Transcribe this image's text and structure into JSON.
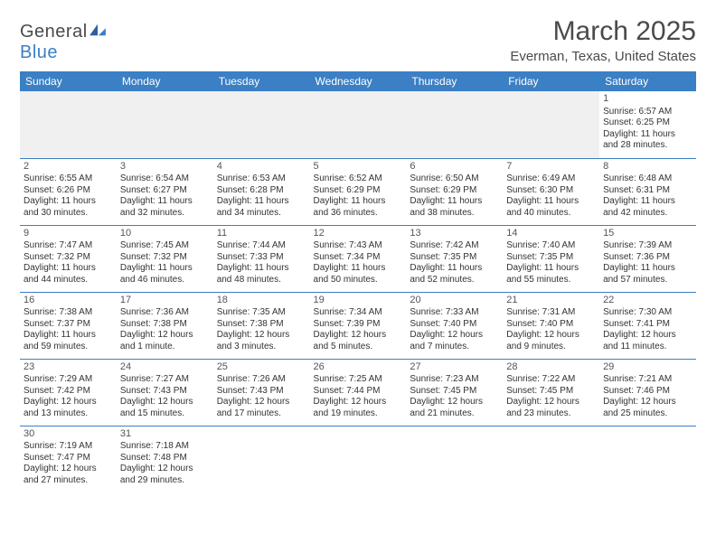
{
  "logo": {
    "textA": "General",
    "textB": "Blue"
  },
  "title": "March 2025",
  "location": "Everman, Texas, United States",
  "colors": {
    "accent": "#3b7fc4",
    "text": "#4a4a4a",
    "grid": "#3b7fc4",
    "empty_bg": "#f0f0f0"
  },
  "weekdays": [
    "Sunday",
    "Monday",
    "Tuesday",
    "Wednesday",
    "Thursday",
    "Friday",
    "Saturday"
  ],
  "weeks": [
    [
      null,
      null,
      null,
      null,
      null,
      null,
      {
        "n": "1",
        "sr": "Sunrise: 6:57 AM",
        "ss": "Sunset: 6:25 PM",
        "d1": "Daylight: 11 hours",
        "d2": "and 28 minutes."
      }
    ],
    [
      {
        "n": "2",
        "sr": "Sunrise: 6:55 AM",
        "ss": "Sunset: 6:26 PM",
        "d1": "Daylight: 11 hours",
        "d2": "and 30 minutes."
      },
      {
        "n": "3",
        "sr": "Sunrise: 6:54 AM",
        "ss": "Sunset: 6:27 PM",
        "d1": "Daylight: 11 hours",
        "d2": "and 32 minutes."
      },
      {
        "n": "4",
        "sr": "Sunrise: 6:53 AM",
        "ss": "Sunset: 6:28 PM",
        "d1": "Daylight: 11 hours",
        "d2": "and 34 minutes."
      },
      {
        "n": "5",
        "sr": "Sunrise: 6:52 AM",
        "ss": "Sunset: 6:29 PM",
        "d1": "Daylight: 11 hours",
        "d2": "and 36 minutes."
      },
      {
        "n": "6",
        "sr": "Sunrise: 6:50 AM",
        "ss": "Sunset: 6:29 PM",
        "d1": "Daylight: 11 hours",
        "d2": "and 38 minutes."
      },
      {
        "n": "7",
        "sr": "Sunrise: 6:49 AM",
        "ss": "Sunset: 6:30 PM",
        "d1": "Daylight: 11 hours",
        "d2": "and 40 minutes."
      },
      {
        "n": "8",
        "sr": "Sunrise: 6:48 AM",
        "ss": "Sunset: 6:31 PM",
        "d1": "Daylight: 11 hours",
        "d2": "and 42 minutes."
      }
    ],
    [
      {
        "n": "9",
        "sr": "Sunrise: 7:47 AM",
        "ss": "Sunset: 7:32 PM",
        "d1": "Daylight: 11 hours",
        "d2": "and 44 minutes."
      },
      {
        "n": "10",
        "sr": "Sunrise: 7:45 AM",
        "ss": "Sunset: 7:32 PM",
        "d1": "Daylight: 11 hours",
        "d2": "and 46 minutes."
      },
      {
        "n": "11",
        "sr": "Sunrise: 7:44 AM",
        "ss": "Sunset: 7:33 PM",
        "d1": "Daylight: 11 hours",
        "d2": "and 48 minutes."
      },
      {
        "n": "12",
        "sr": "Sunrise: 7:43 AM",
        "ss": "Sunset: 7:34 PM",
        "d1": "Daylight: 11 hours",
        "d2": "and 50 minutes."
      },
      {
        "n": "13",
        "sr": "Sunrise: 7:42 AM",
        "ss": "Sunset: 7:35 PM",
        "d1": "Daylight: 11 hours",
        "d2": "and 52 minutes."
      },
      {
        "n": "14",
        "sr": "Sunrise: 7:40 AM",
        "ss": "Sunset: 7:35 PM",
        "d1": "Daylight: 11 hours",
        "d2": "and 55 minutes."
      },
      {
        "n": "15",
        "sr": "Sunrise: 7:39 AM",
        "ss": "Sunset: 7:36 PM",
        "d1": "Daylight: 11 hours",
        "d2": "and 57 minutes."
      }
    ],
    [
      {
        "n": "16",
        "sr": "Sunrise: 7:38 AM",
        "ss": "Sunset: 7:37 PM",
        "d1": "Daylight: 11 hours",
        "d2": "and 59 minutes."
      },
      {
        "n": "17",
        "sr": "Sunrise: 7:36 AM",
        "ss": "Sunset: 7:38 PM",
        "d1": "Daylight: 12 hours",
        "d2": "and 1 minute."
      },
      {
        "n": "18",
        "sr": "Sunrise: 7:35 AM",
        "ss": "Sunset: 7:38 PM",
        "d1": "Daylight: 12 hours",
        "d2": "and 3 minutes."
      },
      {
        "n": "19",
        "sr": "Sunrise: 7:34 AM",
        "ss": "Sunset: 7:39 PM",
        "d1": "Daylight: 12 hours",
        "d2": "and 5 minutes."
      },
      {
        "n": "20",
        "sr": "Sunrise: 7:33 AM",
        "ss": "Sunset: 7:40 PM",
        "d1": "Daylight: 12 hours",
        "d2": "and 7 minutes."
      },
      {
        "n": "21",
        "sr": "Sunrise: 7:31 AM",
        "ss": "Sunset: 7:40 PM",
        "d1": "Daylight: 12 hours",
        "d2": "and 9 minutes."
      },
      {
        "n": "22",
        "sr": "Sunrise: 7:30 AM",
        "ss": "Sunset: 7:41 PM",
        "d1": "Daylight: 12 hours",
        "d2": "and 11 minutes."
      }
    ],
    [
      {
        "n": "23",
        "sr": "Sunrise: 7:29 AM",
        "ss": "Sunset: 7:42 PM",
        "d1": "Daylight: 12 hours",
        "d2": "and 13 minutes."
      },
      {
        "n": "24",
        "sr": "Sunrise: 7:27 AM",
        "ss": "Sunset: 7:43 PM",
        "d1": "Daylight: 12 hours",
        "d2": "and 15 minutes."
      },
      {
        "n": "25",
        "sr": "Sunrise: 7:26 AM",
        "ss": "Sunset: 7:43 PM",
        "d1": "Daylight: 12 hours",
        "d2": "and 17 minutes."
      },
      {
        "n": "26",
        "sr": "Sunrise: 7:25 AM",
        "ss": "Sunset: 7:44 PM",
        "d1": "Daylight: 12 hours",
        "d2": "and 19 minutes."
      },
      {
        "n": "27",
        "sr": "Sunrise: 7:23 AM",
        "ss": "Sunset: 7:45 PM",
        "d1": "Daylight: 12 hours",
        "d2": "and 21 minutes."
      },
      {
        "n": "28",
        "sr": "Sunrise: 7:22 AM",
        "ss": "Sunset: 7:45 PM",
        "d1": "Daylight: 12 hours",
        "d2": "and 23 minutes."
      },
      {
        "n": "29",
        "sr": "Sunrise: 7:21 AM",
        "ss": "Sunset: 7:46 PM",
        "d1": "Daylight: 12 hours",
        "d2": "and 25 minutes."
      }
    ],
    [
      {
        "n": "30",
        "sr": "Sunrise: 7:19 AM",
        "ss": "Sunset: 7:47 PM",
        "d1": "Daylight: 12 hours",
        "d2": "and 27 minutes."
      },
      {
        "n": "31",
        "sr": "Sunrise: 7:18 AM",
        "ss": "Sunset: 7:48 PM",
        "d1": "Daylight: 12 hours",
        "d2": "and 29 minutes."
      },
      null,
      null,
      null,
      null,
      null
    ]
  ]
}
